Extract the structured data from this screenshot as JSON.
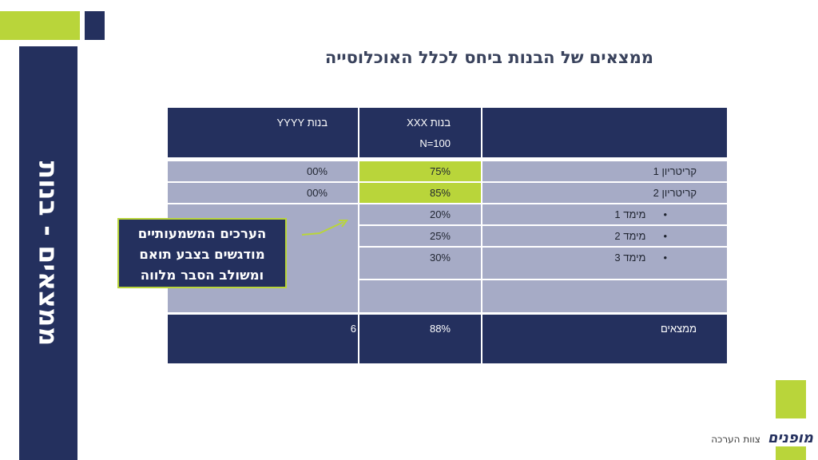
{
  "side_title": "ממצאים - בנות",
  "main_title": "ממצאים של הבנות ביחס לכלל האוכלוסייה",
  "table": {
    "header": {
      "col_xxx_line1": "בנות XXX",
      "col_xxx_line2": "N=100",
      "col_yyyy": "בנות YYYY"
    },
    "rows": [
      {
        "label": "קריטריון 1",
        "xxx": "75%",
        "yyyy": "00%"
      },
      {
        "label": "קריטריון 2",
        "xxx": "85%",
        "yyyy": "00%"
      },
      {
        "label": "מימד 1",
        "xxx": "20%",
        "yyyy": ""
      },
      {
        "label": "מימד 2",
        "xxx": "25%",
        "yyyy": ""
      },
      {
        "label": "מימד 3",
        "xxx": "30%",
        "yyyy": ""
      }
    ],
    "bullet": "•",
    "footer": {
      "label": "ממצאים",
      "xxx": "88%",
      "yyyy": "6"
    }
  },
  "callout": {
    "line1": "הערכים המשמעותיים",
    "line2": "מודגשים בצבע תואם",
    "line3": "ומשולב הסבר מלווה"
  },
  "brand": {
    "logo": "מופנים",
    "subtitle": "צוות הערכה"
  },
  "colors": {
    "navy": "#24305e",
    "green": "#b9d53a",
    "lavender": "#a6abc6"
  }
}
